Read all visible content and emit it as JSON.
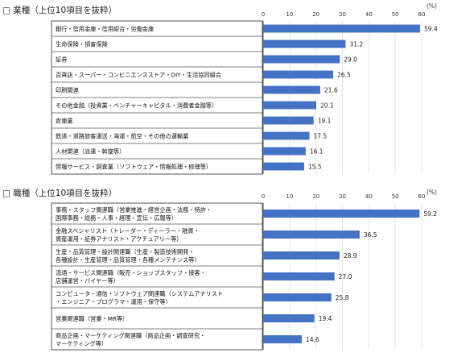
{
  "chart_data": [
    {
      "type": "bar",
      "orientation": "horizontal",
      "title": "□ 業種（上位10項目を抜粋）",
      "unit": "(%)",
      "xlim": [
        0,
        60
      ],
      "ticks": [
        0,
        10,
        20,
        30,
        40,
        50,
        60
      ],
      "categories": [
        [
          "銀行・信用金庫・信用組合・労働金庫"
        ],
        [
          "生命保険・損害保険"
        ],
        [
          "証券"
        ],
        [
          "百貨店・スーパー・コンビニエンスストア・DIY・生活協同組合"
        ],
        [
          "印刷関連"
        ],
        [
          "その他金融（投資業・ベンチャーキャピタル・消費者金融等）"
        ],
        [
          "倉庫業"
        ],
        [
          "鉄道・道路旅客運送・海運・航空・その他の運輸業"
        ],
        [
          "人材関連（派遣・斡旋等）"
        ],
        [
          "情報サービス・調査業（ソフトウェア・情報処理・修理等）"
        ]
      ],
      "values": [
        59.4,
        31.2,
        29.0,
        26.5,
        21.6,
        20.1,
        19.1,
        17.5,
        16.1,
        15.5
      ],
      "value_labels": [
        "59.4",
        "31.2",
        "29.0",
        "26.5",
        "21.6",
        "20.1",
        "19.1",
        "17.5",
        "16.1",
        "15.5"
      ],
      "bar_color": "#4472c4"
    },
    {
      "type": "bar",
      "orientation": "horizontal",
      "title": "□ 職種（上位10項目を抜粋）",
      "unit": "(%)",
      "xlim": [
        0,
        60
      ],
      "ticks": [
        0,
        10,
        20,
        30,
        40,
        50,
        60
      ],
      "categories": [
        [
          "事務・スタッフ関連職（営業推進・経営企画・法務・特許・",
          "国際事務・総務・人事・経理・宣伝・広報等）"
        ],
        [
          "金融スペシャリスト（トレーダー・ディーラー・融資・",
          "資産運用・証券アナリスト・アクチュアリー等）"
        ],
        [
          "生産・品質管理・設計関連職（生産・製造技術開発・",
          "各種設計・生産管理・品質管理・各種メンテナンス等）"
        ],
        [
          "流通・サービス関連職（販売・ショップスタッフ・接客・",
          "店舗運営・バイヤー等）"
        ],
        [
          "コンピュータ・通信・ソフトウェア関連職（システムアナリスト",
          "・エンジニア・プログラマ・運用・保守等）"
        ],
        [
          "営業関連職（営業・MR等）"
        ],
        [
          "商品企画・マーケティング関連職（商品企画・調査研究・",
          "マーケティング等）"
        ]
      ],
      "values": [
        59.2,
        36.5,
        28.9,
        27.0,
        25.8,
        19.4,
        14.6
      ],
      "value_labels": [
        "59.2",
        "36.5",
        "28.9",
        "27.0",
        "25.8",
        "19.4",
        "14.6"
      ],
      "bar_color": "#4472c4"
    }
  ]
}
